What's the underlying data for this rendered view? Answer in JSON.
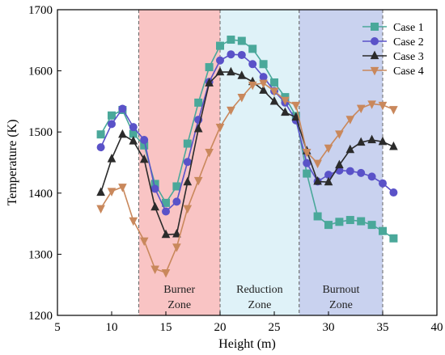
{
  "chart_data": {
    "type": "line",
    "xlabel": "Height (m)",
    "ylabel": "Temperature (K)",
    "xlim": [
      5,
      40
    ],
    "ylim": [
      1200,
      1700
    ],
    "x_ticks": [
      "5",
      "10",
      "15",
      "20",
      "25",
      "30",
      "35",
      "40"
    ],
    "y_ticks": [
      "1200",
      "1300",
      "1400",
      "1500",
      "1600",
      "1700"
    ],
    "zones": [
      {
        "label_line1": "Burner",
        "label_line2": "Zone",
        "x_start": 12.5,
        "x_end": 20,
        "color": "#f9c4c4"
      },
      {
        "label_line1": "Reduction",
        "label_line2": "Zone",
        "x_start": 20,
        "x_end": 27.3,
        "color": "#dff2f8"
      },
      {
        "label_line1": "Burnout",
        "label_line2": "Zone",
        "x_start": 27.3,
        "x_end": 35,
        "color": "#c9d2ef"
      }
    ],
    "legend_position": "top-right",
    "x": [
      9,
      10,
      11,
      12,
      13,
      14,
      15,
      16,
      17,
      18,
      19,
      20,
      21,
      22,
      23,
      24,
      25,
      26,
      27,
      28,
      29,
      30,
      31,
      32,
      33,
      34,
      35,
      36
    ],
    "series": [
      {
        "name": "Case 1",
        "color": "#4aa89a",
        "marker": "square",
        "values": [
          1496,
          1527,
          1536,
          1497,
          1478,
          1415,
          1384,
          1411,
          1481,
          1548,
          1606,
          1641,
          1651,
          1649,
          1636,
          1611,
          1581,
          1557,
          1526,
          1432,
          1362,
          1348,
          1353,
          1356,
          1354,
          1348,
          1338,
          1326
        ]
      },
      {
        "name": "Case 2",
        "color": "#5a52c8",
        "marker": "circle",
        "values": [
          1475,
          1513,
          1538,
          1508,
          1487,
          1407,
          1370,
          1386,
          1451,
          1520,
          1582,
          1617,
          1627,
          1626,
          1611,
          1590,
          1567,
          1548,
          1519,
          1449,
          1419,
          1430,
          1437,
          1436,
          1433,
          1427,
          1416,
          1401
        ]
      },
      {
        "name": "Case 3",
        "color": "#2b2b2b",
        "marker": "triangle-up",
        "values": [
          1401,
          1456,
          1496,
          1485,
          1455,
          1377,
          1332,
          1333,
          1418,
          1505,
          1580,
          1598,
          1598,
          1592,
          1582,
          1568,
          1550,
          1532,
          1524,
          1469,
          1419,
          1418,
          1446,
          1471,
          1483,
          1487,
          1484,
          1476
        ]
      },
      {
        "name": "Case 4",
        "color": "#c9885c",
        "marker": "triangle-down",
        "values": [
          1375,
          1403,
          1410,
          1355,
          1322,
          1276,
          1270,
          1312,
          1375,
          1421,
          1467,
          1508,
          1536,
          1557,
          1577,
          1580,
          1567,
          1552,
          1544,
          1467,
          1449,
          1474,
          1497,
          1521,
          1539,
          1546,
          1544,
          1537
        ]
      }
    ]
  }
}
